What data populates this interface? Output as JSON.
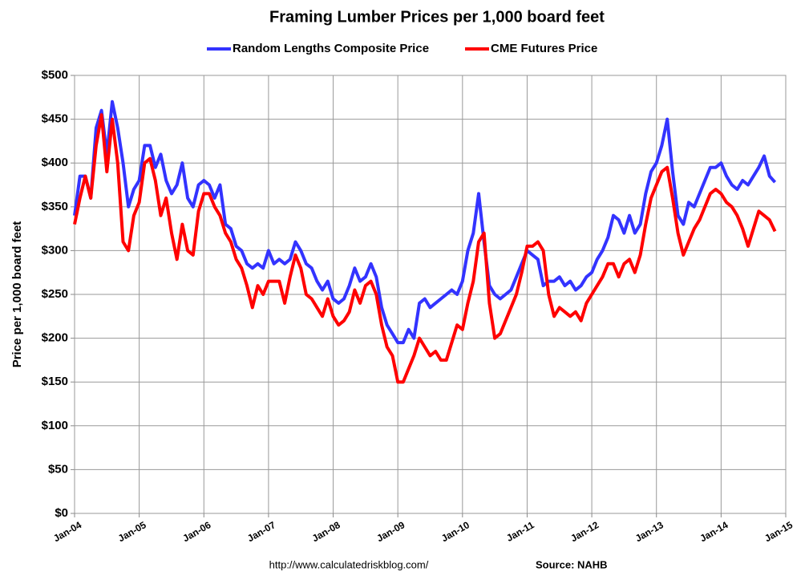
{
  "chart_data": {
    "type": "line",
    "title": "Framing Lumber Prices per 1,000 board feet",
    "y_label": "Price per 1,000 board feet",
    "source": "Source: NAHB",
    "url": "http://www.calculatedriskblog.com/",
    "grid": true,
    "legend": "top",
    "x": [
      "2004-01",
      "2004-02",
      "2004-03",
      "2004-04",
      "2004-05",
      "2004-06",
      "2004-07",
      "2004-08",
      "2004-09",
      "2004-10",
      "2004-11",
      "2004-12",
      "2005-01",
      "2005-02",
      "2005-03",
      "2005-04",
      "2005-05",
      "2005-06",
      "2005-07",
      "2005-08",
      "2005-09",
      "2005-10",
      "2005-11",
      "2005-12",
      "2006-01",
      "2006-02",
      "2006-03",
      "2006-04",
      "2006-05",
      "2006-06",
      "2006-07",
      "2006-08",
      "2006-09",
      "2006-10",
      "2006-11",
      "2006-12",
      "2007-01",
      "2007-02",
      "2007-03",
      "2007-04",
      "2007-05",
      "2007-06",
      "2007-07",
      "2007-08",
      "2007-09",
      "2007-10",
      "2007-11",
      "2007-12",
      "2008-01",
      "2008-02",
      "2008-03",
      "2008-04",
      "2008-05",
      "2008-06",
      "2008-07",
      "2008-08",
      "2008-09",
      "2008-10",
      "2008-11",
      "2008-12",
      "2009-01",
      "2009-02",
      "2009-03",
      "2009-04",
      "2009-05",
      "2009-06",
      "2009-07",
      "2009-08",
      "2009-09",
      "2009-10",
      "2009-11",
      "2009-12",
      "2010-01",
      "2010-02",
      "2010-03",
      "2010-04",
      "2010-05",
      "2010-06",
      "2010-07",
      "2010-08",
      "2010-09",
      "2010-10",
      "2010-11",
      "2010-12",
      "2011-01",
      "2011-02",
      "2011-03",
      "2011-04",
      "2011-05",
      "2011-06",
      "2011-07",
      "2011-08",
      "2011-09",
      "2011-10",
      "2011-11",
      "2011-12",
      "2012-01",
      "2012-02",
      "2012-03",
      "2012-04",
      "2012-05",
      "2012-06",
      "2012-07",
      "2012-08",
      "2012-09",
      "2012-10",
      "2012-11",
      "2012-12",
      "2013-01",
      "2013-02",
      "2013-03",
      "2013-04",
      "2013-05",
      "2013-06",
      "2013-07",
      "2013-08",
      "2013-09",
      "2013-10",
      "2013-11",
      "2013-12",
      "2014-01",
      "2014-02",
      "2014-03",
      "2014-04",
      "2014-05",
      "2014-06",
      "2014-07",
      "2014-08",
      "2014-09",
      "2014-10",
      "2014-11"
    ],
    "series": [
      {
        "name": "Random Lengths Composite Price",
        "color": "#3333ff",
        "values": [
          340,
          385,
          385,
          360,
          440,
          460,
          410,
          470,
          440,
          400,
          350,
          370,
          380,
          420,
          420,
          395,
          410,
          380,
          365,
          375,
          400,
          360,
          350,
          375,
          380,
          375,
          360,
          375,
          330,
          325,
          305,
          300,
          285,
          280,
          285,
          280,
          300,
          285,
          290,
          285,
          290,
          310,
          300,
          285,
          280,
          265,
          255,
          265,
          245,
          240,
          245,
          260,
          280,
          265,
          270,
          285,
          270,
          235,
          215,
          205,
          195,
          195,
          210,
          200,
          240,
          245,
          235,
          240,
          245,
          250,
          255,
          250,
          265,
          300,
          320,
          365,
          310,
          260,
          250,
          245,
          250,
          255,
          270,
          285,
          300,
          295,
          290,
          260,
          265,
          265,
          270,
          260,
          265,
          255,
          260,
          270,
          275,
          290,
          300,
          315,
          340,
          335,
          320,
          340,
          320,
          330,
          365,
          390,
          400,
          420,
          450,
          390,
          340,
          330,
          355,
          350,
          365,
          380,
          395,
          395,
          400,
          385,
          375,
          370,
          380,
          375,
          385,
          395,
          408,
          385,
          378
        ]
      },
      {
        "name": "CME Futures Price",
        "color": "#ff0000",
        "values": [
          330,
          360,
          385,
          360,
          420,
          455,
          390,
          450,
          400,
          310,
          300,
          340,
          355,
          400,
          405,
          380,
          340,
          360,
          320,
          290,
          330,
          300,
          295,
          345,
          365,
          365,
          350,
          340,
          320,
          310,
          290,
          280,
          260,
          235,
          260,
          250,
          265,
          265,
          265,
          240,
          270,
          295,
          280,
          250,
          245,
          235,
          225,
          245,
          225,
          215,
          220,
          230,
          255,
          240,
          260,
          265,
          250,
          215,
          190,
          180,
          150,
          150,
          165,
          180,
          200,
          190,
          180,
          185,
          175,
          175,
          195,
          215,
          210,
          240,
          265,
          310,
          320,
          240,
          200,
          205,
          220,
          235,
          250,
          275,
          305,
          305,
          310,
          300,
          250,
          225,
          235,
          230,
          225,
          230,
          220,
          240,
          250,
          260,
          270,
          285,
          285,
          270,
          285,
          290,
          275,
          295,
          330,
          360,
          375,
          390,
          395,
          360,
          320,
          295,
          310,
          325,
          335,
          350,
          365,
          370,
          365,
          355,
          350,
          340,
          325,
          305,
          325,
          345,
          340,
          335,
          322
        ]
      }
    ],
    "xlim": [
      "2004-01",
      "2015-01"
    ],
    "xticks": [
      {
        "value": "2004-01",
        "label": "Jan-04"
      },
      {
        "value": "2005-01",
        "label": "Jan-05"
      },
      {
        "value": "2006-01",
        "label": "Jan-06"
      },
      {
        "value": "2007-01",
        "label": "Jan-07"
      },
      {
        "value": "2008-01",
        "label": "Jan-08"
      },
      {
        "value": "2009-01",
        "label": "Jan-09"
      },
      {
        "value": "2010-01",
        "label": "Jan-10"
      },
      {
        "value": "2011-01",
        "label": "Jan-11"
      },
      {
        "value": "2012-01",
        "label": "Jan-12"
      },
      {
        "value": "2013-01",
        "label": "Jan-13"
      },
      {
        "value": "2014-01",
        "label": "Jan-14"
      },
      {
        "value": "2015-01",
        "label": "Jan-15"
      }
    ],
    "ylim": [
      0,
      500
    ],
    "yticks": [
      {
        "value": 0,
        "label": "$0"
      },
      {
        "value": 50,
        "label": "$50"
      },
      {
        "value": 100,
        "label": "$100"
      },
      {
        "value": 150,
        "label": "$150"
      },
      {
        "value": 200,
        "label": "$200"
      },
      {
        "value": 250,
        "label": "$250"
      },
      {
        "value": 300,
        "label": "$300"
      },
      {
        "value": 350,
        "label": "$350"
      },
      {
        "value": 400,
        "label": "$400"
      },
      {
        "value": 450,
        "label": "$450"
      },
      {
        "value": 500,
        "label": "$500"
      }
    ]
  }
}
